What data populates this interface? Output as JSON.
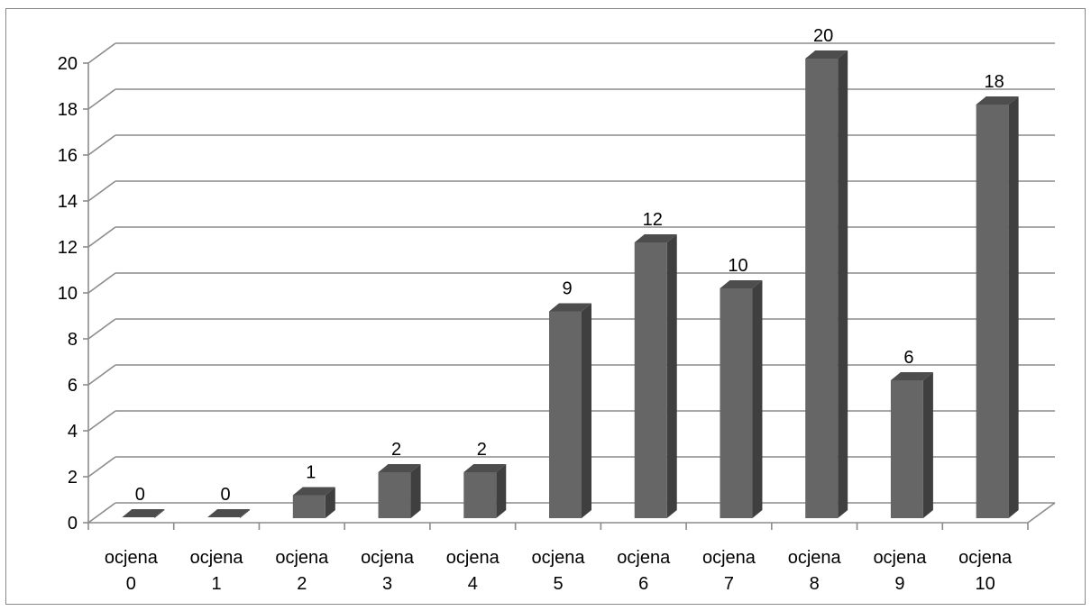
{
  "chart_data": {
    "type": "bar",
    "style": "3d-column",
    "categories": [
      [
        "ocjena",
        "0"
      ],
      [
        "ocjena",
        "1"
      ],
      [
        "ocjena",
        "2"
      ],
      [
        "ocjena",
        "3"
      ],
      [
        "ocjena",
        "4"
      ],
      [
        "ocjena",
        "5"
      ],
      [
        "ocjena",
        "6"
      ],
      [
        "ocjena",
        "7"
      ],
      [
        "ocjena",
        "8"
      ],
      [
        "ocjena",
        "9"
      ],
      [
        "ocjena",
        "10"
      ]
    ],
    "values": [
      0,
      0,
      1,
      2,
      2,
      9,
      12,
      10,
      20,
      6,
      18
    ],
    "data_labels": [
      "0",
      "0",
      "1",
      "2",
      "2",
      "9",
      "12",
      "10",
      "20",
      "6",
      "18"
    ],
    "yticks": [
      "0",
      "2",
      "4",
      "6",
      "8",
      "10",
      "12",
      "14",
      "16",
      "18",
      "20"
    ],
    "ylim": [
      0,
      20
    ],
    "grid": true,
    "legend": "none",
    "colors": {
      "bar_front": "#666666",
      "bar_side": "#3f3f3f",
      "bar_top": "#4d4d4d",
      "grid": "#8c8c8c"
    }
  }
}
